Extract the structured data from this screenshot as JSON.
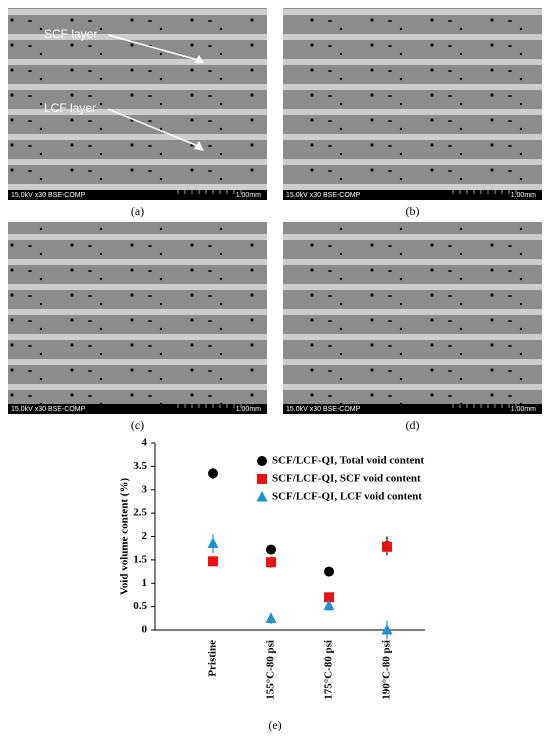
{
  "panels": [
    {
      "label": "(a)",
      "info": "15.0kV x30 BSE-COMP",
      "scale": "1.00mm",
      "annotations": [
        "SCF layer",
        "LCF layer"
      ]
    },
    {
      "label": "(b)",
      "info": "15.0kV x30 BSE-COMP",
      "scale": "1.00mm"
    },
    {
      "label": "(c)",
      "info": "15.0kV x30 BSE-COMP",
      "scale": "1.00mm"
    },
    {
      "label": "(d)",
      "info": "15.0kV x30 BSE-COMP",
      "scale": "1.00mm"
    }
  ],
  "chart_data": {
    "type": "scatter",
    "caption": "(e)",
    "ylabel": "Void volume content (%)",
    "categories": [
      "Pristine",
      "155°C-80 psi",
      "175°C-80 psi",
      "190°C-80 psi"
    ],
    "ylim": [
      0,
      4
    ],
    "yticks": [
      0,
      0.5,
      1,
      1.5,
      2,
      2.5,
      3,
      3.5,
      4
    ],
    "legend": "top-right",
    "series": [
      {
        "name": "SCF/LCF-QI, Total void content",
        "color": "#000000",
        "marker": "circle",
        "values": [
          3.35,
          1.72,
          1.25,
          1.8
        ],
        "errors": [
          0.12,
          0.1,
          0.1,
          0.2
        ]
      },
      {
        "name": "SCF/LCF-QI, SCF void content",
        "color": "#ee1111",
        "marker": "square",
        "values": [
          1.47,
          1.45,
          0.7,
          1.78
        ],
        "errors": [
          0.1,
          0.12,
          0.1,
          0.15
        ]
      },
      {
        "name": "SCF/LCF-QI, LCF void content",
        "color": "#1e90d0",
        "marker": "triangle",
        "values": [
          1.85,
          0.25,
          0.52,
          0.0
        ],
        "errors": [
          0.2,
          0.12,
          0.1,
          0.2
        ]
      }
    ]
  }
}
